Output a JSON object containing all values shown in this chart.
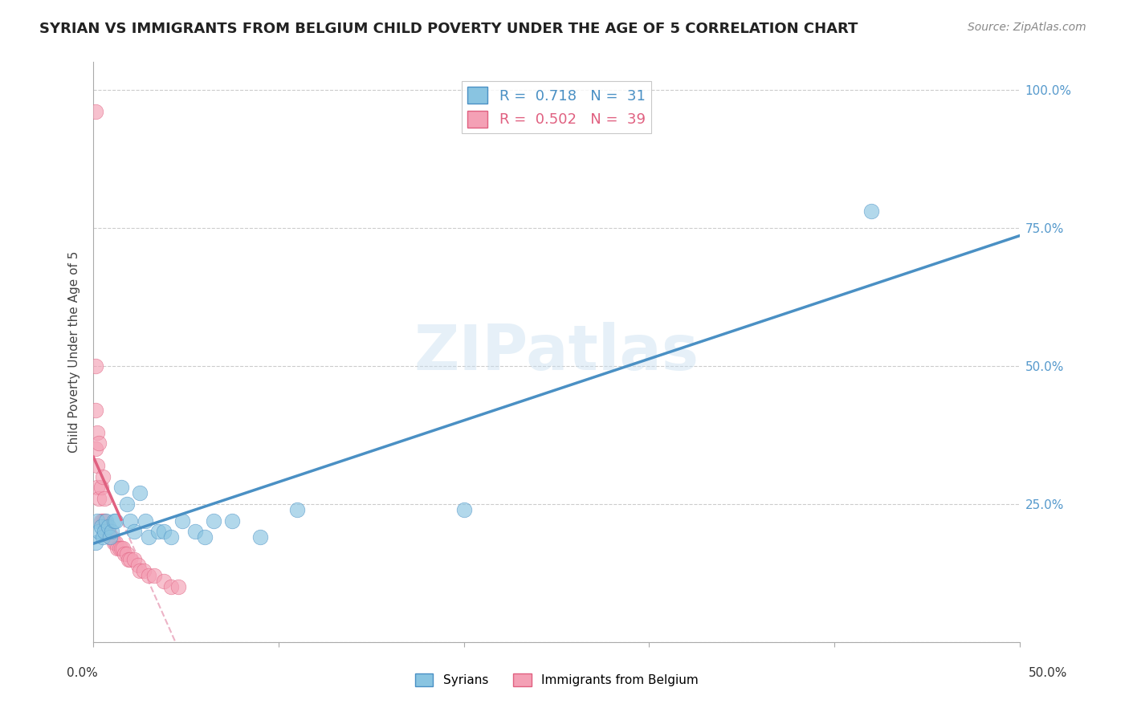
{
  "title": "SYRIAN VS IMMIGRANTS FROM BELGIUM CHILD POVERTY UNDER THE AGE OF 5 CORRELATION CHART",
  "source": "Source: ZipAtlas.com",
  "ylabel": "Child Poverty Under the Age of 5",
  "syrians_color": "#89c4e1",
  "belgium_color": "#f4a0b5",
  "syrians_line_color": "#4a90c4",
  "belgium_line_color": "#e06080",
  "belgium_dash_color": "#e8a0b8",
  "syrians_R": 0.718,
  "syrians_N": 31,
  "belgium_R": 0.502,
  "belgium_N": 39,
  "background_color": "#ffffff",
  "syrians_x": [
    0.001,
    0.002,
    0.003,
    0.004,
    0.005,
    0.006,
    0.007,
    0.008,
    0.009,
    0.01,
    0.011,
    0.012,
    0.015,
    0.018,
    0.02,
    0.022,
    0.025,
    0.028,
    0.03,
    0.035,
    0.038,
    0.042,
    0.048,
    0.055,
    0.06,
    0.065,
    0.075,
    0.09,
    0.11,
    0.2,
    0.42
  ],
  "syrians_y": [
    0.18,
    0.22,
    0.2,
    0.21,
    0.19,
    0.2,
    0.22,
    0.21,
    0.19,
    0.2,
    0.22,
    0.22,
    0.28,
    0.25,
    0.22,
    0.2,
    0.27,
    0.22,
    0.19,
    0.2,
    0.2,
    0.19,
    0.22,
    0.2,
    0.19,
    0.22,
    0.22,
    0.19,
    0.24,
    0.24,
    0.78
  ],
  "belgium_x": [
    0.001,
    0.001,
    0.001,
    0.001,
    0.002,
    0.002,
    0.002,
    0.003,
    0.003,
    0.004,
    0.004,
    0.005,
    0.005,
    0.006,
    0.006,
    0.007,
    0.007,
    0.008,
    0.009,
    0.01,
    0.011,
    0.012,
    0.013,
    0.014,
    0.015,
    0.016,
    0.017,
    0.018,
    0.019,
    0.02,
    0.022,
    0.024,
    0.025,
    0.027,
    0.03,
    0.033,
    0.038,
    0.042,
    0.046
  ],
  "belgium_y": [
    0.96,
    0.5,
    0.42,
    0.35,
    0.32,
    0.38,
    0.28,
    0.36,
    0.26,
    0.28,
    0.22,
    0.3,
    0.22,
    0.26,
    0.22,
    0.21,
    0.2,
    0.2,
    0.19,
    0.19,
    0.18,
    0.18,
    0.17,
    0.17,
    0.17,
    0.17,
    0.16,
    0.16,
    0.15,
    0.15,
    0.15,
    0.14,
    0.13,
    0.13,
    0.12,
    0.12,
    0.11,
    0.1,
    0.1
  ],
  "xlim": [
    0.0,
    0.5
  ],
  "ylim": [
    0.0,
    1.05
  ],
  "yticks": [
    0.0,
    0.25,
    0.5,
    0.75,
    1.0
  ],
  "ytick_labels_right": [
    "",
    "25.0%",
    "50.0%",
    "75.0%",
    "100.0%"
  ]
}
